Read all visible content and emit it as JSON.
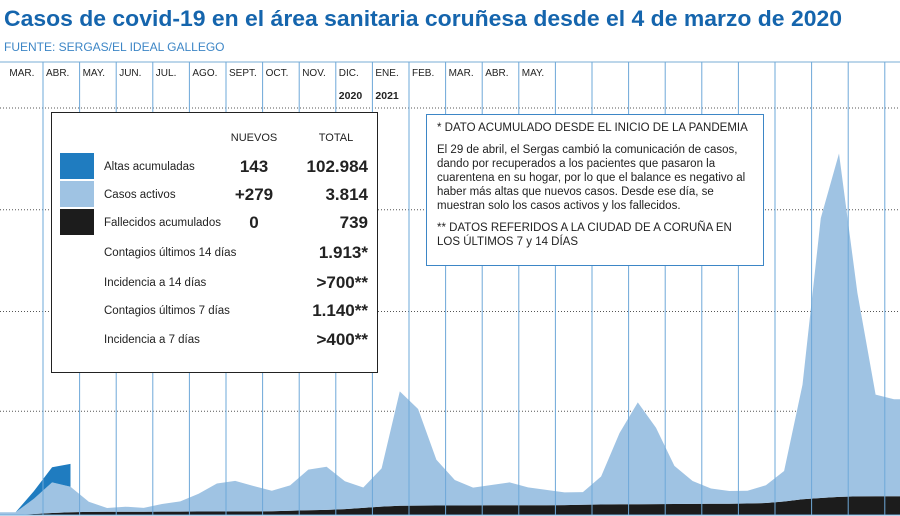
{
  "header": {
    "title": "Casos de covid-19 en el área sanitaria coruñesa desde el 4 de marzo de 2020",
    "source": "FUENTE: SERGAS/EL IDEAL GALLEGO"
  },
  "chart_data": {
    "type": "area",
    "categories": [
      "MAR.",
      null,
      "ABR.",
      null,
      "MAY.",
      null,
      "JUN.",
      null,
      "JUL.",
      null,
      "AGO.",
      null,
      "SEPT.",
      null,
      "OCT.",
      null,
      "NOV.",
      null,
      "DIC.",
      null,
      "ENE.",
      null,
      "FEB.",
      null,
      "MAR.",
      null,
      "ABR.",
      null,
      "MAY.",
      null,
      null,
      null,
      null,
      null,
      null,
      null,
      null,
      null,
      null,
      null,
      null,
      null,
      null,
      null,
      null,
      null,
      null,
      null,
      null
    ],
    "year_labels": [
      {
        "category": 18,
        "label": "2020"
      },
      {
        "category": 20,
        "label": "2021"
      }
    ],
    "ylim": [
      0,
      16000
    ],
    "grid": true,
    "stacked": true,
    "series": [
      {
        "name": "Fallecidos acumulados",
        "color": "#1c1c1c",
        "values": [
          5,
          40,
          80,
          110,
          120,
          125,
          128,
          130,
          132,
          134,
          136,
          138,
          140,
          142,
          150,
          165,
          185,
          200,
          230,
          280,
          330,
          360,
          368,
          372,
          375,
          378,
          380,
          382,
          384,
          386,
          390,
          400,
          412,
          420,
          425,
          428,
          432,
          436,
          440,
          445,
          452,
          470,
          530,
          620,
          670,
          710,
          730,
          735,
          739
        ]
      },
      {
        "name": "Casos activos",
        "color": "#9fc3e3",
        "values": [
          100,
          600,
          1200,
          1000,
          400,
          150,
          200,
          150,
          300,
          400,
          700,
          1100,
          1200,
          1000,
          800,
          1000,
          1600,
          1700,
          1100,
          800,
          1500,
          4500,
          3800,
          1800,
          1000,
          700,
          800,
          900,
          700,
          600,
          500,
          500,
          1100,
          2800,
          4000,
          3000,
          1500,
          900,
          600,
          500,
          500,
          700,
          1200,
          4500,
          11000,
          13500,
          8000,
          4000,
          3814
        ]
      },
      {
        "name": "Altas acumuladas",
        "color": "#1f7cc0",
        "values": [
          0,
          300,
          600,
          900,
          null,
          null,
          null,
          null,
          null,
          null,
          null,
          null,
          null,
          null,
          null,
          null,
          null,
          null,
          null,
          null,
          null,
          null,
          null,
          null,
          null,
          null,
          null,
          null,
          null,
          null,
          null,
          null,
          null,
          null,
          null,
          null,
          null,
          null,
          null,
          null,
          null,
          null,
          null,
          null,
          null,
          null,
          null,
          null,
          null
        ]
      }
    ]
  },
  "summary": {
    "headers": [
      "NUEVOS",
      "TOTAL"
    ],
    "series_rows": [
      {
        "series": 2,
        "new": "143",
        "total": "102.984"
      },
      {
        "series": 1,
        "new": "+279",
        "total": "3.814"
      },
      {
        "series": 0,
        "new": "0",
        "total": "739"
      }
    ],
    "other_rows": [
      {
        "label": "Contagios últimos 14 días",
        "total": "1.913*"
      },
      {
        "label": "Incidencia a 14 días",
        "total": ">700**"
      },
      {
        "label": "Contagios últimos 7 días",
        "total": "1.140**"
      },
      {
        "label": "Incidencia a 7 días",
        "total": ">400**"
      }
    ]
  },
  "notes": [
    "* DATO ACUMULADO DESDE EL INICIO DE LA PANDEMIA",
    "El 29 de abril, el Sergas cambió la comunicación de casos, dando por recuperados a los pacientes que pasaron la cuarentena en su hogar, por lo que el balance es negativo al haber más altas que nuevos casos. Desde ese día, se muestran solo los casos activos y los fallecidos.",
    "** DATOS REFERIDOS A LA CIUDAD DE A CORUÑA EN LOS ÚLTIMOS 7 y 14 DÍAS"
  ]
}
